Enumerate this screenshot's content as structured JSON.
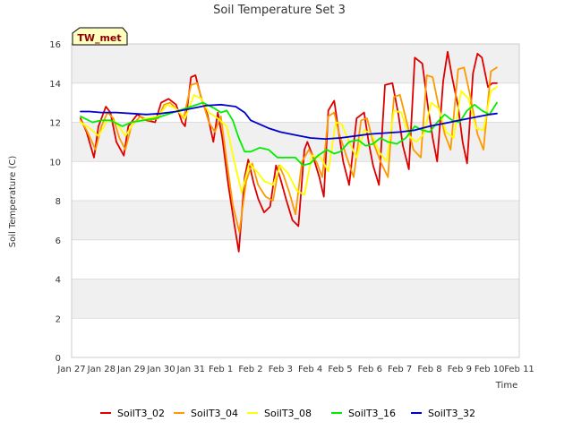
{
  "chart_data": {
    "type": "line",
    "title": "Soil Temperature Set 3",
    "xlabel": "Time",
    "ylabel": "Soil Temperature (C)",
    "badge": "TW_met",
    "ylim": [
      0,
      16
    ],
    "yticks": [
      0,
      2,
      4,
      6,
      8,
      10,
      12,
      14,
      16
    ],
    "xlim": [
      0,
      15
    ],
    "xticks": [
      {
        "x": 0,
        "label": "Jan 27"
      },
      {
        "x": 1,
        "label": "Jan 28"
      },
      {
        "x": 2,
        "label": "Jan 29"
      },
      {
        "x": 3,
        "label": "Jan 30"
      },
      {
        "x": 4,
        "label": "Jan 31"
      },
      {
        "x": 5,
        "label": "Feb 1"
      },
      {
        "x": 6,
        "label": "Feb 2"
      },
      {
        "x": 7,
        "label": "Feb 3"
      },
      {
        "x": 8,
        "label": "Feb 4"
      },
      {
        "x": 9,
        "label": "Feb 5"
      },
      {
        "x": 10,
        "label": "Feb 6"
      },
      {
        "x": 11,
        "label": "Feb 7"
      },
      {
        "x": 12,
        "label": "Feb 8"
      },
      {
        "x": 13,
        "label": "Feb 9"
      },
      {
        "x": 14,
        "label": "Feb 10"
      },
      {
        "x": 15,
        "label": "Feb 11"
      }
    ],
    "grid": true,
    "legend_position": "bottom",
    "series": [
      {
        "name": "SoilT3_02",
        "color": "#dd0000",
        "x": [
          0.3,
          0.5,
          0.75,
          0.9,
          1.15,
          1.3,
          1.5,
          1.75,
          1.9,
          2.2,
          2.5,
          2.8,
          3.0,
          3.25,
          3.5,
          3.7,
          3.8,
          4.0,
          4.15,
          4.35,
          4.55,
          4.75,
          4.9,
          5.05,
          5.25,
          5.45,
          5.6,
          5.8,
          5.92,
          6.1,
          6.25,
          6.45,
          6.65,
          6.85,
          7.0,
          7.2,
          7.4,
          7.6,
          7.8,
          7.9,
          8.1,
          8.3,
          8.45,
          8.6,
          8.8,
          8.95,
          9.1,
          9.3,
          9.55,
          9.8,
          9.95,
          10.1,
          10.3,
          10.5,
          10.75,
          10.95,
          11.1,
          11.3,
          11.5,
          11.75,
          11.95,
          12.1,
          12.25,
          12.45,
          12.6,
          12.75,
          12.95,
          13.1,
          13.25,
          13.45,
          13.6,
          13.75,
          13.95,
          14.1,
          14.25
        ],
        "y": [
          12.2,
          11.5,
          10.2,
          11.8,
          12.8,
          12.5,
          11.0,
          10.3,
          11.8,
          12.4,
          12.1,
          12.0,
          13.0,
          13.2,
          12.9,
          12.0,
          11.8,
          14.3,
          14.4,
          13.2,
          12.4,
          11.0,
          12.5,
          11.2,
          8.8,
          6.8,
          5.4,
          9.2,
          10.1,
          8.9,
          8.1,
          7.4,
          7.7,
          9.8,
          9.1,
          8.0,
          7.0,
          6.7,
          10.6,
          11.0,
          10.2,
          9.2,
          8.2,
          12.6,
          13.1,
          11.5,
          10.0,
          8.8,
          12.2,
          12.5,
          11.0,
          9.8,
          8.8,
          13.9,
          14.0,
          12.4,
          10.8,
          9.6,
          15.3,
          15.0,
          12.7,
          11.2,
          10.0,
          14.1,
          15.6,
          14.3,
          12.8,
          11.0,
          9.9,
          14.5,
          15.5,
          15.3,
          13.8,
          14.0,
          14.0
        ]
      },
      {
        "name": "SoilT3_04",
        "color": "#ff9900",
        "x": [
          0.3,
          0.5,
          0.8,
          1.0,
          1.2,
          1.4,
          1.6,
          1.8,
          2.0,
          2.3,
          2.6,
          2.9,
          3.1,
          3.3,
          3.5,
          3.75,
          4.0,
          4.2,
          4.4,
          4.6,
          4.8,
          5.0,
          5.2,
          5.4,
          5.62,
          5.85,
          6.05,
          6.25,
          6.5,
          6.75,
          6.95,
          7.1,
          7.3,
          7.5,
          7.72,
          7.95,
          8.2,
          8.4,
          8.6,
          8.8,
          8.95,
          9.2,
          9.45,
          9.7,
          9.9,
          10.1,
          10.35,
          10.6,
          10.8,
          11.0,
          11.2,
          11.45,
          11.7,
          11.9,
          12.1,
          12.3,
          12.5,
          12.7,
          12.95,
          13.15,
          13.35,
          13.6,
          13.8,
          14.05,
          14.25
        ],
        "y": [
          12.1,
          11.6,
          10.6,
          11.8,
          12.5,
          12.2,
          11.2,
          10.6,
          11.8,
          12.3,
          12.1,
          12.2,
          12.9,
          13.0,
          12.7,
          12.2,
          13.9,
          14.0,
          13.0,
          12.0,
          11.5,
          12.3,
          10.0,
          7.8,
          6.4,
          9.0,
          9.9,
          8.8,
          8.2,
          8.0,
          9.8,
          9.3,
          8.4,
          7.3,
          10.0,
          10.6,
          10.0,
          9.2,
          12.3,
          12.5,
          11.5,
          10.3,
          9.2,
          12.1,
          12.2,
          11.0,
          10.0,
          9.2,
          13.3,
          13.4,
          12.2,
          10.6,
          10.2,
          14.4,
          14.3,
          12.8,
          11.4,
          10.6,
          14.7,
          14.8,
          13.4,
          11.4,
          10.6,
          14.6,
          14.8
        ]
      },
      {
        "name": "SoilT3_08",
        "color": "#ffff00",
        "x": [
          0.3,
          0.6,
          0.9,
          1.2,
          1.5,
          1.8,
          2.1,
          2.5,
          2.9,
          3.2,
          3.5,
          3.8,
          4.1,
          4.35,
          4.6,
          4.9,
          5.2,
          5.45,
          5.7,
          5.95,
          6.2,
          6.45,
          6.75,
          7.0,
          7.25,
          7.55,
          7.8,
          8.05,
          8.35,
          8.6,
          8.85,
          9.05,
          9.3,
          9.55,
          9.8,
          10.05,
          10.3,
          10.55,
          10.8,
          11.05,
          11.3,
          11.55,
          11.8,
          12.05,
          12.3,
          12.55,
          12.8,
          13.05,
          13.3,
          13.55,
          13.8,
          14.05,
          14.25
        ],
        "y": [
          12.0,
          11.7,
          11.3,
          12.1,
          12.0,
          11.3,
          12.0,
          12.2,
          12.3,
          12.9,
          12.7,
          12.2,
          13.4,
          13.2,
          12.5,
          12.2,
          11.8,
          10.0,
          8.4,
          9.9,
          9.5,
          9.0,
          8.8,
          9.8,
          9.4,
          8.5,
          8.3,
          10.3,
          10.2,
          9.5,
          12.0,
          11.9,
          11.0,
          10.2,
          11.6,
          11.4,
          10.5,
          10.0,
          12.6,
          12.5,
          11.3,
          11.0,
          11.4,
          13.0,
          12.7,
          11.5,
          11.2,
          13.6,
          13.2,
          11.7,
          11.6,
          13.6,
          13.8
        ]
      },
      {
        "name": "SoilT3_16",
        "color": "#00ee00",
        "x": [
          0.3,
          0.7,
          1.0,
          1.3,
          1.7,
          2.0,
          2.4,
          2.8,
          3.2,
          3.6,
          4.0,
          4.4,
          4.8,
          5.0,
          5.2,
          5.4,
          5.6,
          5.8,
          6.0,
          6.3,
          6.6,
          6.9,
          7.2,
          7.5,
          7.75,
          8.0,
          8.25,
          8.55,
          8.8,
          9.0,
          9.3,
          9.6,
          9.85,
          10.1,
          10.35,
          10.6,
          10.9,
          11.2,
          11.5,
          11.75,
          12.0,
          12.25,
          12.5,
          12.75,
          13.0,
          13.25,
          13.5,
          13.75,
          14.0,
          14.25
        ],
        "y": [
          12.3,
          12.0,
          12.1,
          12.1,
          11.8,
          12.0,
          12.1,
          12.2,
          12.4,
          12.6,
          12.8,
          13.0,
          12.7,
          12.5,
          12.6,
          12.1,
          11.2,
          10.5,
          10.5,
          10.7,
          10.6,
          10.2,
          10.2,
          10.2,
          9.8,
          9.9,
          10.3,
          10.6,
          10.4,
          10.5,
          11.0,
          11.1,
          10.8,
          10.9,
          11.2,
          11.0,
          10.9,
          11.2,
          11.8,
          11.6,
          11.5,
          12.0,
          12.4,
          12.1,
          12.0,
          12.6,
          12.9,
          12.6,
          12.4,
          13.0
        ]
      },
      {
        "name": "SoilT3_32",
        "color": "#0000cc",
        "x": [
          0.3,
          0.6,
          1.0,
          1.5,
          2.0,
          2.5,
          3.0,
          3.5,
          4.0,
          4.5,
          5.0,
          5.5,
          5.8,
          6.0,
          6.3,
          6.6,
          7.0,
          7.5,
          8.0,
          8.5,
          9.0,
          9.5,
          10.0,
          10.5,
          11.0,
          11.5,
          12.0,
          12.5,
          13.0,
          13.5,
          14.0,
          14.25
        ],
        "y": [
          12.55,
          12.55,
          12.5,
          12.5,
          12.45,
          12.4,
          12.45,
          12.55,
          12.7,
          12.85,
          12.9,
          12.8,
          12.5,
          12.1,
          11.9,
          11.7,
          11.5,
          11.35,
          11.2,
          11.15,
          11.2,
          11.3,
          11.4,
          11.45,
          11.5,
          11.6,
          11.8,
          11.95,
          12.1,
          12.25,
          12.4,
          12.45
        ]
      }
    ]
  }
}
